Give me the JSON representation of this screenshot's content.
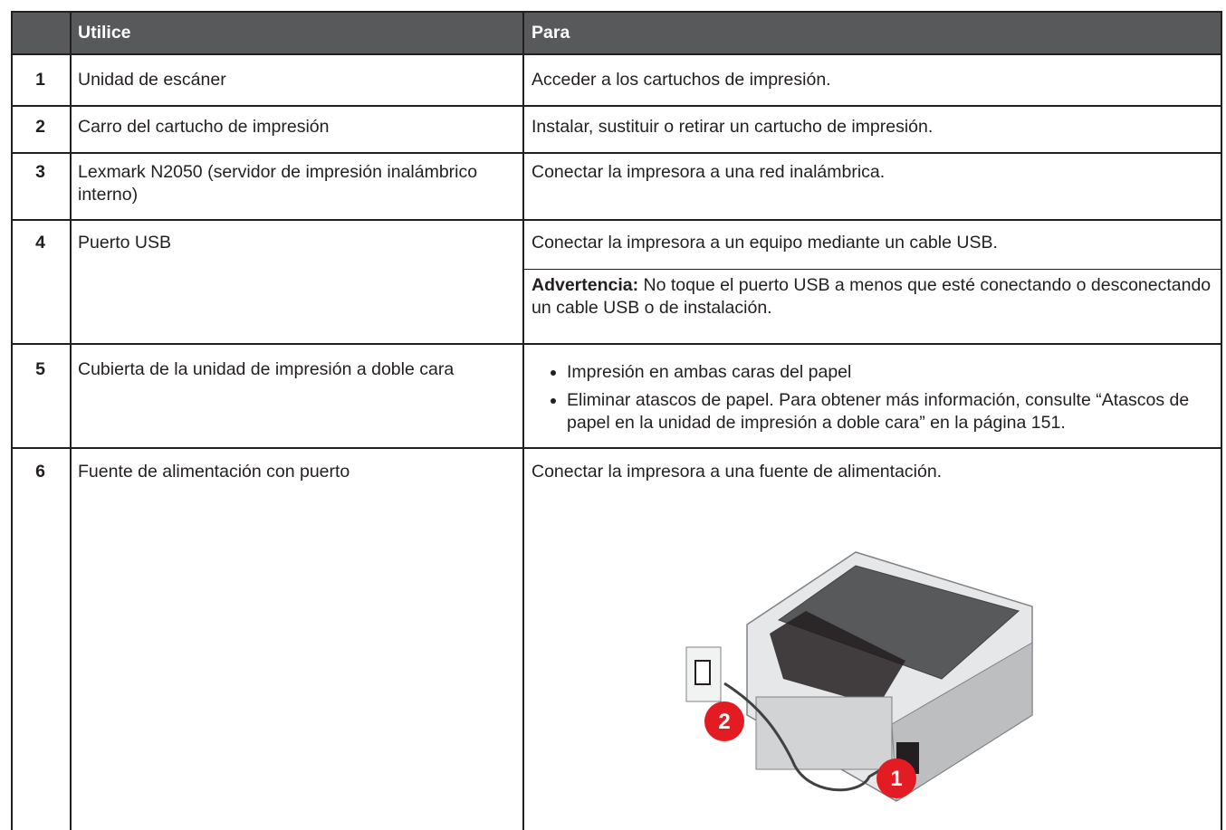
{
  "table": {
    "header": [
      "Utilice",
      "Para"
    ],
    "rows": [
      {
        "number": "1",
        "item": "Unidad de escáner",
        "purpose": "Acceder a los cartuchos de impresión."
      },
      {
        "number": "2",
        "item": "Carro del cartucho de impresión",
        "purpose": "Instalar, sustituir o retirar un cartucho de impresión."
      },
      {
        "number": "3",
        "item": "Lexmark N2050 (servidor de impresión inalámbrico interno)",
        "purpose": "Conectar la impresora a una red inalámbrica."
      },
      {
        "number": "4",
        "item": "Puerto USB",
        "purpose": "Conectar la impresora a un equipo mediante un cable USB.",
        "warning_label": "Advertencia:",
        "warning": "No toque el puerto USB a menos que esté conectando o desconectando un cable USB o de instalación."
      },
      {
        "number": "5",
        "item": "Cubierta de la unidad de impresión a doble cara",
        "bullets": [
          "Impresión en ambas caras del papel",
          "Eliminar atascos de papel. Para obtener más información, consulte “Atascos de papel en la unidad de impresión a doble cara” en la página 151."
        ]
      },
      {
        "number": "6",
        "item": "Fuente de alimentación con puerto",
        "purpose": "Conectar la impresora a una fuente de alimentación.",
        "callouts": [
          "1",
          "2"
        ]
      }
    ]
  }
}
